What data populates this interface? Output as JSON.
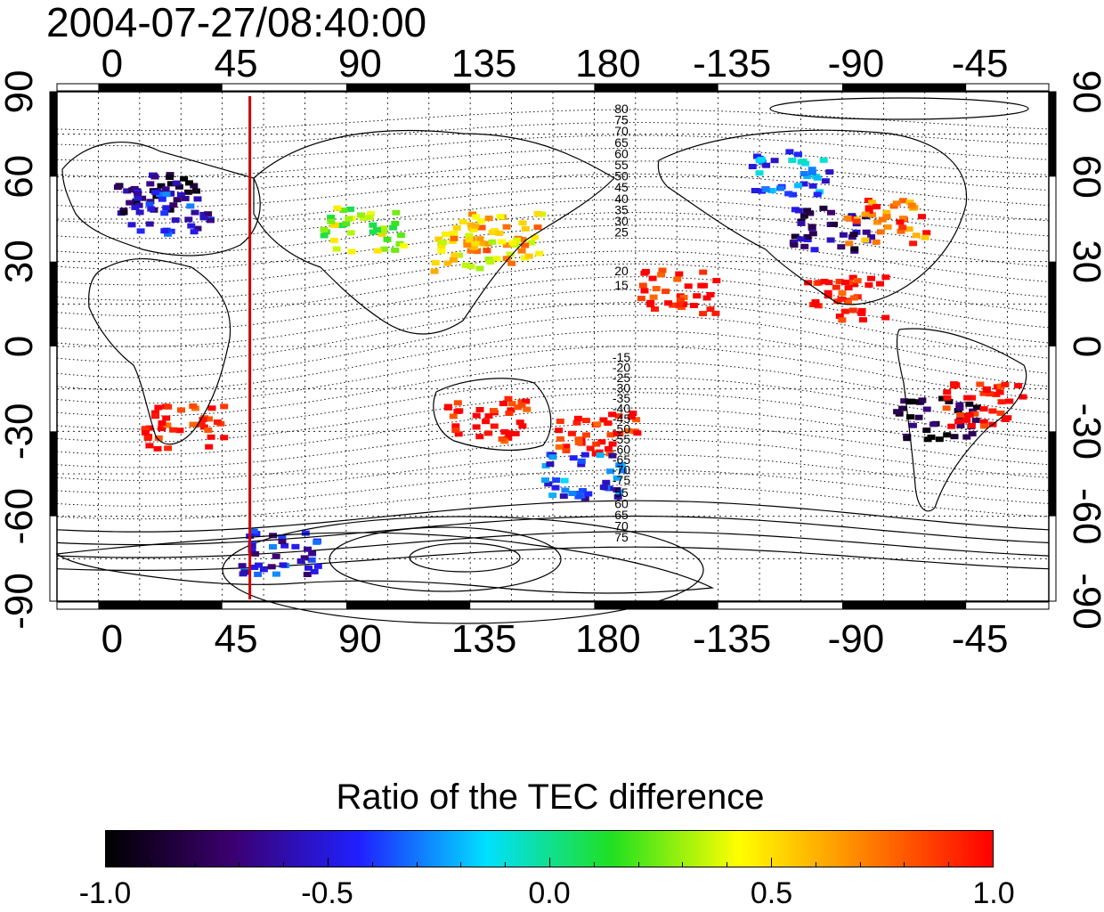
{
  "title": "2004-07-27/08:40:00",
  "colors": {
    "red_line": "#d00000",
    "map_frame": "#000000",
    "colormap": [
      "#000000",
      "#3b0070",
      "#2020ff",
      "#00e0ff",
      "#20e020",
      "#ffff00",
      "#ff8000",
      "#ff0000"
    ]
  },
  "axes": {
    "longitude_labels": [
      "0",
      "45",
      "90",
      "135",
      "180",
      "-135",
      "-90",
      "-45"
    ],
    "latitude_labels": [
      "90",
      "60",
      "30",
      "0",
      "-30",
      "-60",
      "-90"
    ],
    "longitude_range": [
      -20,
      340
    ],
    "latitude_range": [
      -90,
      90
    ]
  },
  "marker_line": {
    "longitude": 50
  },
  "magnetic_contours": {
    "labels_north": [
      "80",
      "75",
      "70",
      "65",
      "60",
      "55",
      "50",
      "45",
      "40",
      "35",
      "30",
      "25",
      "20",
      "15"
    ],
    "labels_south": [
      "-15",
      "-20",
      "-25",
      "-30",
      "-35",
      "-40",
      "-45",
      "-50",
      "-55",
      "-60",
      "-65",
      "-70",
      "-75"
    ],
    "labels_south_far": [
      "55",
      "60",
      "65",
      "70",
      "75"
    ]
  },
  "tec_regions": [
    {
      "region": "North Europe",
      "lon": 15,
      "lat": 55,
      "value": -0.8
    },
    {
      "region": "Europe",
      "lon": 20,
      "lat": 48,
      "value": -0.5
    },
    {
      "region": "Central Asia",
      "lon": 90,
      "lat": 42,
      "value": 0.3
    },
    {
      "region": "East Asia",
      "lon": 130,
      "lat": 35,
      "value": 0.55
    },
    {
      "region": "Japan",
      "lon": 140,
      "lat": 40,
      "value": 0.6
    },
    {
      "region": "Australia",
      "lon": 135,
      "lat": -25,
      "value": 1.0
    },
    {
      "region": "South Pacific",
      "lon": 175,
      "lat": -30,
      "value": 1.0
    },
    {
      "region": "New Zealand",
      "lon": 170,
      "lat": -45,
      "value": -0.4
    },
    {
      "region": "Alaska/Canada",
      "lon": -115,
      "lat": 62,
      "value": -0.3
    },
    {
      "region": "Central North America",
      "lon": -100,
      "lat": 42,
      "value": -0.7
    },
    {
      "region": "Eastern North America",
      "lon": -80,
      "lat": 45,
      "value": 0.8
    },
    {
      "region": "Central America",
      "lon": -95,
      "lat": 18,
      "value": 1.0
    },
    {
      "region": "Hawaii",
      "lon": -155,
      "lat": 20,
      "value": 1.0
    },
    {
      "region": "South America",
      "lon": -62,
      "lat": -25,
      "value": -0.9
    },
    {
      "region": "Southern Brazil",
      "lon": -45,
      "lat": -20,
      "value": 1.0
    },
    {
      "region": "Southern Africa",
      "lon": 25,
      "lat": -28,
      "value": 1.0
    },
    {
      "region": "Antarctica",
      "lon": 60,
      "lat": -72,
      "value": -0.5
    }
  ],
  "colorbar": {
    "title": "Ratio of the TEC difference",
    "tick_labels": [
      "-1.0",
      "-0.5",
      "0.0",
      "0.5",
      "1.0"
    ],
    "min": -1.0,
    "max": 1.0
  }
}
